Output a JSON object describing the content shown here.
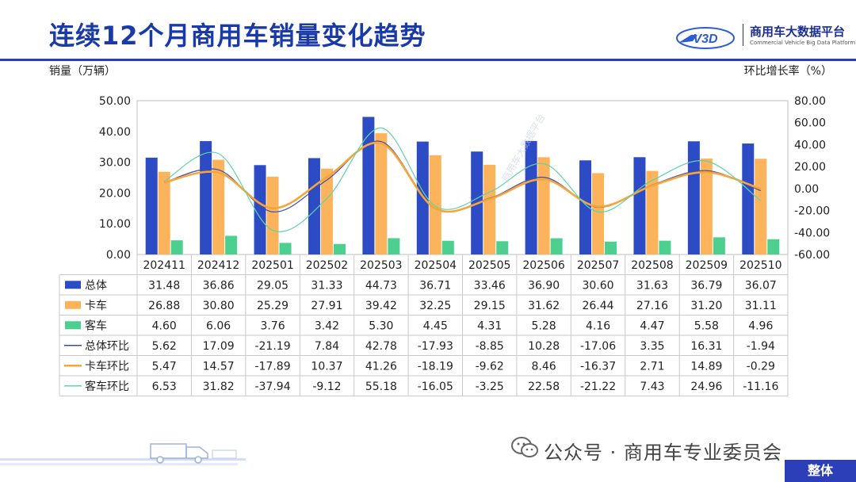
{
  "title": "连续12个月商用车销量变化趋势",
  "logo": {
    "text_cn": "商用车大数据平台",
    "text_en": "Commercial Vehicle Big Data Platform",
    "mark": "V3D"
  },
  "axis_left_label": "销量（万辆）",
  "axis_right_label": "环比增长率（%）",
  "footer": {
    "text": "公众号 · 商用车专业委员会",
    "tag": "整体"
  },
  "colors": {
    "total": "#2e4bc6",
    "truck": "#fbb45c",
    "bus": "#4ccf8f",
    "total_line": "#3a4db0",
    "truck_line": "#f5a53a",
    "bus_line": "#5fd3a8",
    "title": "#1a3aa8"
  },
  "chart_data": {
    "type": "bar",
    "categories": [
      "202411",
      "202412",
      "202501",
      "202502",
      "202503",
      "202504",
      "202505",
      "202506",
      "202507",
      "202508",
      "202509",
      "202510"
    ],
    "left_axis": {
      "ylim": [
        0,
        50
      ],
      "ticks": [
        "0.00",
        "10.00",
        "20.00",
        "30.00",
        "40.00",
        "50.00"
      ]
    },
    "right_axis": {
      "ylim": [
        -60,
        80
      ],
      "ticks": [
        "-60.00",
        "-40.00",
        "-20.00",
        "0.00",
        "20.00",
        "40.00",
        "60.00",
        "80.00"
      ]
    },
    "series": [
      {
        "name": "总体",
        "kind": "bar",
        "values": [
          31.48,
          36.86,
          29.05,
          31.33,
          44.73,
          36.71,
          33.46,
          36.9,
          30.6,
          31.63,
          36.79,
          36.07
        ],
        "labels": [
          "31.48",
          "36.86",
          "29.05",
          "31.33",
          "44.73",
          "36.71",
          "33.46",
          "36.90",
          "30.60",
          "31.63",
          "36.79",
          "36.07"
        ]
      },
      {
        "name": "卡车",
        "kind": "bar",
        "values": [
          26.88,
          30.8,
          25.29,
          27.91,
          39.42,
          32.25,
          29.15,
          31.62,
          26.44,
          27.16,
          31.2,
          31.11
        ],
        "labels": [
          "26.88",
          "30.80",
          "25.29",
          "27.91",
          "39.42",
          "32.25",
          "29.15",
          "31.62",
          "26.44",
          "27.16",
          "31.20",
          "31.11"
        ]
      },
      {
        "name": "客车",
        "kind": "bar",
        "values": [
          4.6,
          6.06,
          3.76,
          3.42,
          5.3,
          4.45,
          4.31,
          5.28,
          4.16,
          4.47,
          5.58,
          4.96
        ],
        "labels": [
          "4.60",
          "6.06",
          "3.76",
          "3.42",
          "5.30",
          "4.45",
          "4.31",
          "5.28",
          "4.16",
          "4.47",
          "5.58",
          "4.96"
        ]
      },
      {
        "name": "总体环比",
        "kind": "line",
        "values": [
          5.62,
          17.09,
          -21.19,
          7.84,
          42.78,
          -17.93,
          -8.85,
          10.28,
          -17.06,
          3.35,
          16.31,
          -1.94
        ],
        "labels": [
          "5.62",
          "17.09",
          "-21.19",
          "7.84",
          "42.78",
          "-17.93",
          "-8.85",
          "10.28",
          "-17.06",
          "3.35",
          "16.31",
          "-1.94"
        ]
      },
      {
        "name": "卡车环比",
        "kind": "line",
        "values": [
          5.47,
          14.57,
          -17.89,
          10.37,
          41.26,
          -18.19,
          -9.62,
          8.46,
          -16.37,
          2.71,
          14.89,
          -0.29
        ],
        "labels": [
          "5.47",
          "14.57",
          "-17.89",
          "10.37",
          "41.26",
          "-18.19",
          "-9.62",
          "8.46",
          "-16.37",
          "2.71",
          "14.89",
          "-0.29"
        ]
      },
      {
        "name": "客车环比",
        "kind": "line",
        "values": [
          6.53,
          31.82,
          -37.94,
          -9.12,
          55.18,
          -16.05,
          -3.25,
          22.58,
          -21.22,
          7.43,
          24.96,
          -11.16
        ],
        "labels": [
          "6.53",
          "31.82",
          "-37.94",
          "-9.12",
          "55.18",
          "-16.05",
          "-3.25",
          "22.58",
          "-21.22",
          "7.43",
          "24.96",
          "-11.16"
        ]
      }
    ]
  }
}
